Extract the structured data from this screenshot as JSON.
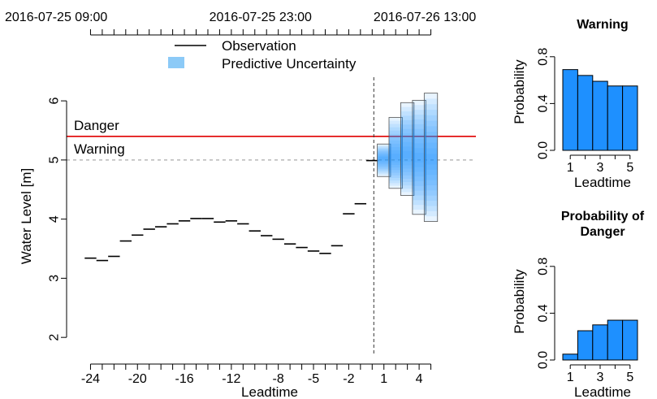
{
  "chart_data": [
    {
      "type": "line",
      "title": "",
      "xlabel": "Leadtime",
      "ylabel": "Water Level [m]",
      "xlim": [
        -25,
        6
      ],
      "ylim": [
        1.7,
        6.4
      ],
      "x_ticks": [
        -24,
        -20,
        -16,
        -12,
        -8,
        -5,
        -2,
        1,
        4
      ],
      "y_ticks": [
        2,
        3,
        4,
        5,
        6
      ],
      "top_axis_labels": [
        {
          "x": -24,
          "label": "2016-07-25 09:00"
        },
        {
          "x": -10,
          "label": "2016-07-25 23:00"
        },
        {
          "x": 4,
          "label": "2016-07-26 13:00"
        }
      ],
      "top_minor_ticks": [
        -24,
        -23,
        -22,
        -21,
        -20,
        -19,
        -18,
        -17,
        -16,
        -15,
        -14,
        -13,
        -12,
        -11,
        -10,
        -9,
        -8,
        -7,
        -6,
        -5,
        -4,
        -3,
        -2,
        -1,
        0,
        1,
        2,
        3,
        4,
        5
      ],
      "legend": {
        "placement": "top-center",
        "observation_label": "Observation",
        "uncertainty_label": "Predictive Uncertainty"
      },
      "thresholds": [
        {
          "name": "Danger",
          "value": 5.4,
          "color": "#e00000",
          "style": "solid"
        },
        {
          "name": "Warning",
          "value": 5.0,
          "color": "#aaaaaa",
          "style": "dashed"
        }
      ],
      "now_line_x": 0,
      "series": [
        {
          "name": "Observation",
          "x": [
            -24,
            -23,
            -22,
            -21,
            -20,
            -19,
            -18,
            -17,
            -16,
            -15,
            -14,
            -13,
            -12,
            -11,
            -10,
            -9,
            -8,
            -7,
            -6,
            -5,
            -4,
            -3,
            -2,
            -1,
            0
          ],
          "values": [
            3.34,
            3.3,
            3.37,
            3.63,
            3.73,
            3.83,
            3.87,
            3.92,
            3.97,
            4.01,
            4.01,
            3.95,
            3.97,
            3.92,
            3.8,
            3.72,
            3.66,
            3.58,
            3.52,
            3.46,
            3.42,
            3.55,
            4.09,
            4.26,
            4.99
          ]
        },
        {
          "name": "Predictive Uncertainty",
          "type": "uncertainty-band",
          "x": [
            1,
            2,
            3,
            4,
            5
          ],
          "lower": [
            4.72,
            4.52,
            4.4,
            4.08,
            3.96
          ],
          "upper": [
            5.27,
            5.72,
            5.97,
            6.01,
            6.13
          ],
          "median": [
            5.03,
            5.05,
            5.08,
            5.04,
            5.01
          ]
        }
      ],
      "colors": {
        "observation": "#000000",
        "uncertainty": "#1e90ff"
      }
    },
    {
      "type": "bar",
      "title": "Warning",
      "xlabel": "Leadtime",
      "ylabel": "Probability",
      "categories": [
        1,
        2,
        3,
        4,
        5
      ],
      "x_ticks": [
        1,
        3,
        5
      ],
      "values": [
        0.69,
        0.64,
        0.59,
        0.55,
        0.55
      ],
      "ylim": [
        0,
        1.0
      ],
      "y_ticks": [
        0.0,
        0.4,
        0.8
      ],
      "color": "#1e90ff"
    },
    {
      "type": "bar",
      "title": "Probability of\nDanger",
      "xlabel": "Leadtime",
      "ylabel": "Probability",
      "categories": [
        1,
        2,
        3,
        4,
        5
      ],
      "x_ticks": [
        1,
        3,
        5
      ],
      "values": [
        0.05,
        0.25,
        0.3,
        0.34,
        0.34
      ],
      "ylim": [
        0,
        1.0
      ],
      "y_ticks": [
        0.0,
        0.4,
        0.8
      ],
      "color": "#1e90ff"
    }
  ]
}
